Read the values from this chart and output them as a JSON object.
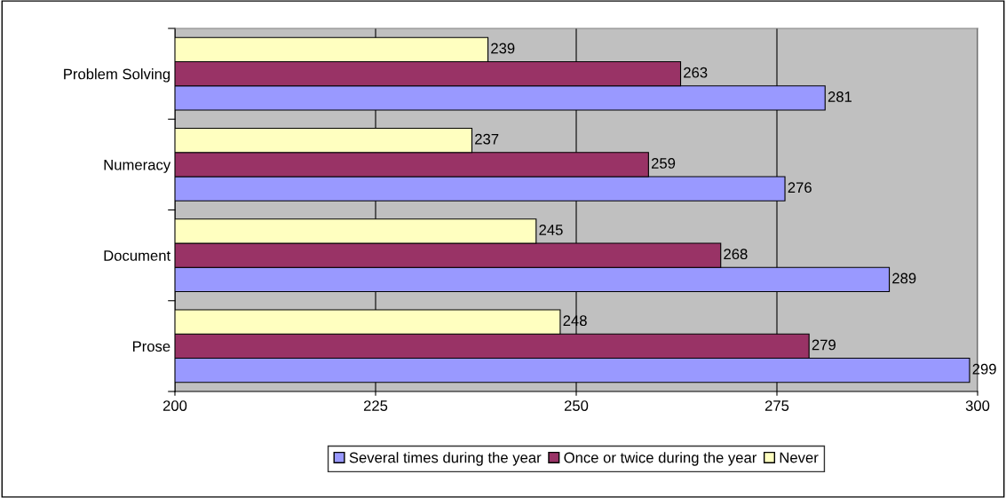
{
  "chart_data": {
    "type": "bar",
    "orientation": "horizontal",
    "categories": [
      "Problem Solving",
      "Numeracy",
      "Document",
      "Prose"
    ],
    "series": [
      {
        "name": "Several times during the year",
        "color": "#9999ff",
        "values": [
          281,
          276,
          289,
          299
        ]
      },
      {
        "name": "Once or twice during the year",
        "color": "#993366",
        "values": [
          263,
          259,
          268,
          279
        ]
      },
      {
        "name": "Never",
        "color": "#ffffc0",
        "values": [
          239,
          237,
          245,
          248
        ]
      }
    ],
    "xlim": [
      200,
      300
    ],
    "xticks": [
      200,
      225,
      250,
      275,
      300
    ],
    "grid": "x",
    "legend": "bottom",
    "data_labels": true
  }
}
